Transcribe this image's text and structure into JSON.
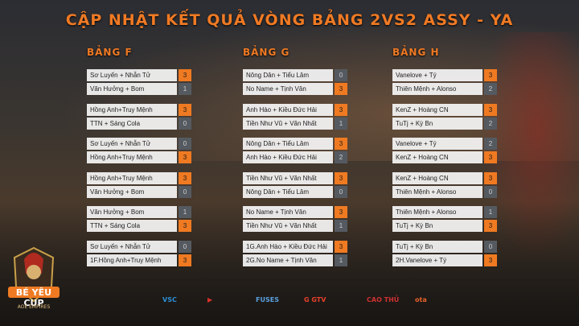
{
  "title": "CẬP NHẬT KẾT QUẢ VÒNG BẢNG 2VS2 ASSY - YA",
  "groups": [
    {
      "name": "BẢNG F",
      "matches": [
        {
          "a": "Sơ Luyến + Nhẫn Tử",
          "sa": "3",
          "b": "Văn Hưởng + Bom",
          "sb": "1"
        },
        {
          "a": "Hồng Anh+Truy Mệnh",
          "sa": "3",
          "b": "TTN + Sáng Cola",
          "sb": "0"
        },
        {
          "a": "Sơ Luyến + Nhẫn Tử",
          "sa": "0",
          "b": "Hồng Anh+Truy Mệnh",
          "sb": "3"
        },
        {
          "a": "Hồng Anh+Truy Mệnh",
          "sa": "3",
          "b": "Văn Hưởng + Bom",
          "sb": "0"
        },
        {
          "a": "Văn Hưởng + Bom",
          "sa": "1",
          "b": "TTN + Sáng Cola",
          "sb": "3"
        },
        {
          "a": "Sơ Luyến + Nhẫn Tử",
          "sa": "0",
          "b": "1F.Hồng Anh+Truy Mệnh",
          "sb": "3"
        }
      ]
    },
    {
      "name": "BẢNG G",
      "matches": [
        {
          "a": "Nông Dân + Tiểu Lâm",
          "sa": "0",
          "b": "No Name + Tịnh Vân",
          "sb": "3"
        },
        {
          "a": "Anh Hào + Kiều Đức Hải",
          "sa": "3",
          "b": "Tiền Như Vũ + Văn Nhất",
          "sb": "1"
        },
        {
          "a": "Nông Dân + Tiểu Lâm",
          "sa": "3",
          "b": "Anh Hào + Kiều Đức Hải",
          "sb": "2"
        },
        {
          "a": "Tiền Như Vũ + Văn Nhất",
          "sa": "3",
          "b": "Nông Dân + Tiểu Lâm",
          "sb": "0"
        },
        {
          "a": "No Name + Tịnh Vân",
          "sa": "3",
          "b": "Tiền Như Vũ + Văn Nhất",
          "sb": "1"
        },
        {
          "a": "1G.Anh Hào + Kiều Đức Hải",
          "sa": "3",
          "b": "2G.No Name + Tịnh Vân",
          "sb": "1"
        }
      ]
    },
    {
      "name": "BẢNG H",
      "matches": [
        {
          "a": "Vanelove + Tý",
          "sa": "3",
          "b": "Thiên Mệnh + Alonso",
          "sb": "2"
        },
        {
          "a": "KenZ + Hoàng CN",
          "sa": "3",
          "b": "TuTj + Kỳ Bn",
          "sb": "2"
        },
        {
          "a": "Vanelove + Tý",
          "sa": "2",
          "b": "KenZ + Hoàng CN",
          "sb": "3"
        },
        {
          "a": "KenZ + Hoàng CN",
          "sa": "3",
          "b": "Thiên Mệnh + Alonso",
          "sb": "0"
        },
        {
          "a": "Thiên Mệnh + Alonso",
          "sa": "1",
          "b": "TuTj + Kỳ Bn",
          "sb": "3"
        },
        {
          "a": "TuTj + Kỳ Bn",
          "sa": "0",
          "b": "2H.Vanelove + Tý",
          "sb": "3"
        }
      ]
    }
  ],
  "logo": {
    "name": "BÉ YÊU CUP",
    "sub": "AOE EMPIRES"
  },
  "sponsors": [
    {
      "label": "VSC",
      "color": "#2a8fd8"
    },
    {
      "label": "▶",
      "color": "#d8302a"
    },
    {
      "label": "FUSES",
      "color": "#5aa0e0"
    },
    {
      "label": "G GTV",
      "color": "#e8402a"
    },
    {
      "label": "CAO THỦ",
      "color": "#d03030"
    },
    {
      "label": "ota",
      "color": "#e8602a"
    }
  ],
  "colors": {
    "accent": "#f07a24",
    "lose": "#555a60"
  }
}
